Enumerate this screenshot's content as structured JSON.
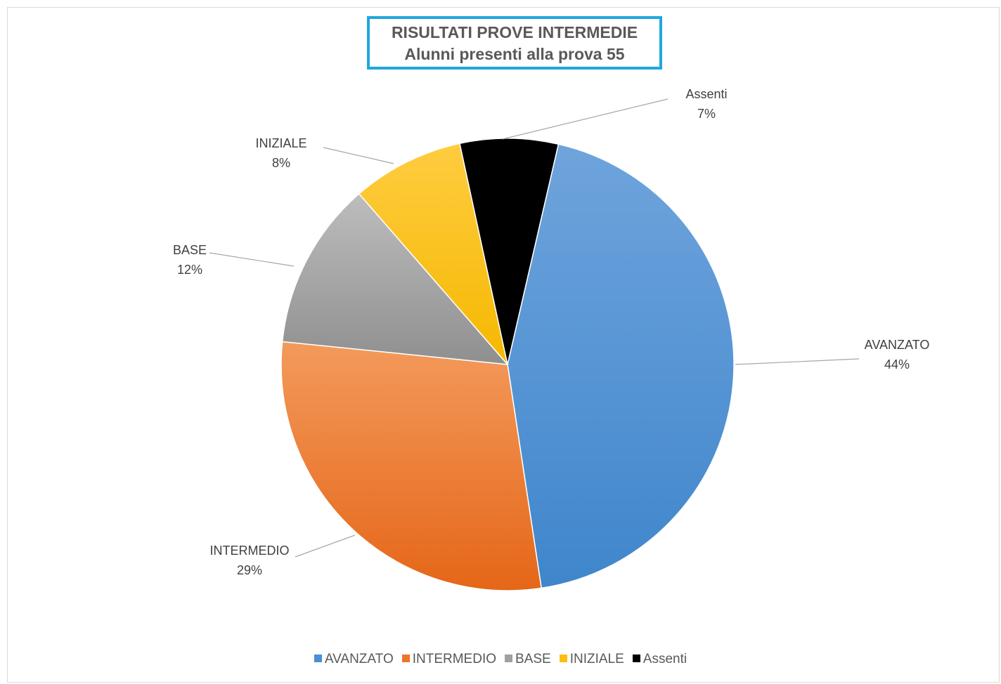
{
  "chart_data": {
    "type": "pie",
    "title": "RISULTATI PROVE INTERMEDIE",
    "subtitle": "Alunni presenti alla prova 55",
    "categories": [
      "AVANZATO",
      "INTERMEDIO",
      "BASE",
      "INIZIALE",
      "Assenti"
    ],
    "values": [
      44,
      29,
      12,
      8,
      7
    ],
    "labels": [
      "44%",
      "29%",
      "12%",
      "8%",
      "7%"
    ],
    "colors": [
      "#4a8fd4",
      "#ed7428",
      "#a0a0a0",
      "#fbbf10",
      "#000000"
    ],
    "legend_position": "bottom",
    "start_angle_deg": 13,
    "direction": "clockwise"
  }
}
